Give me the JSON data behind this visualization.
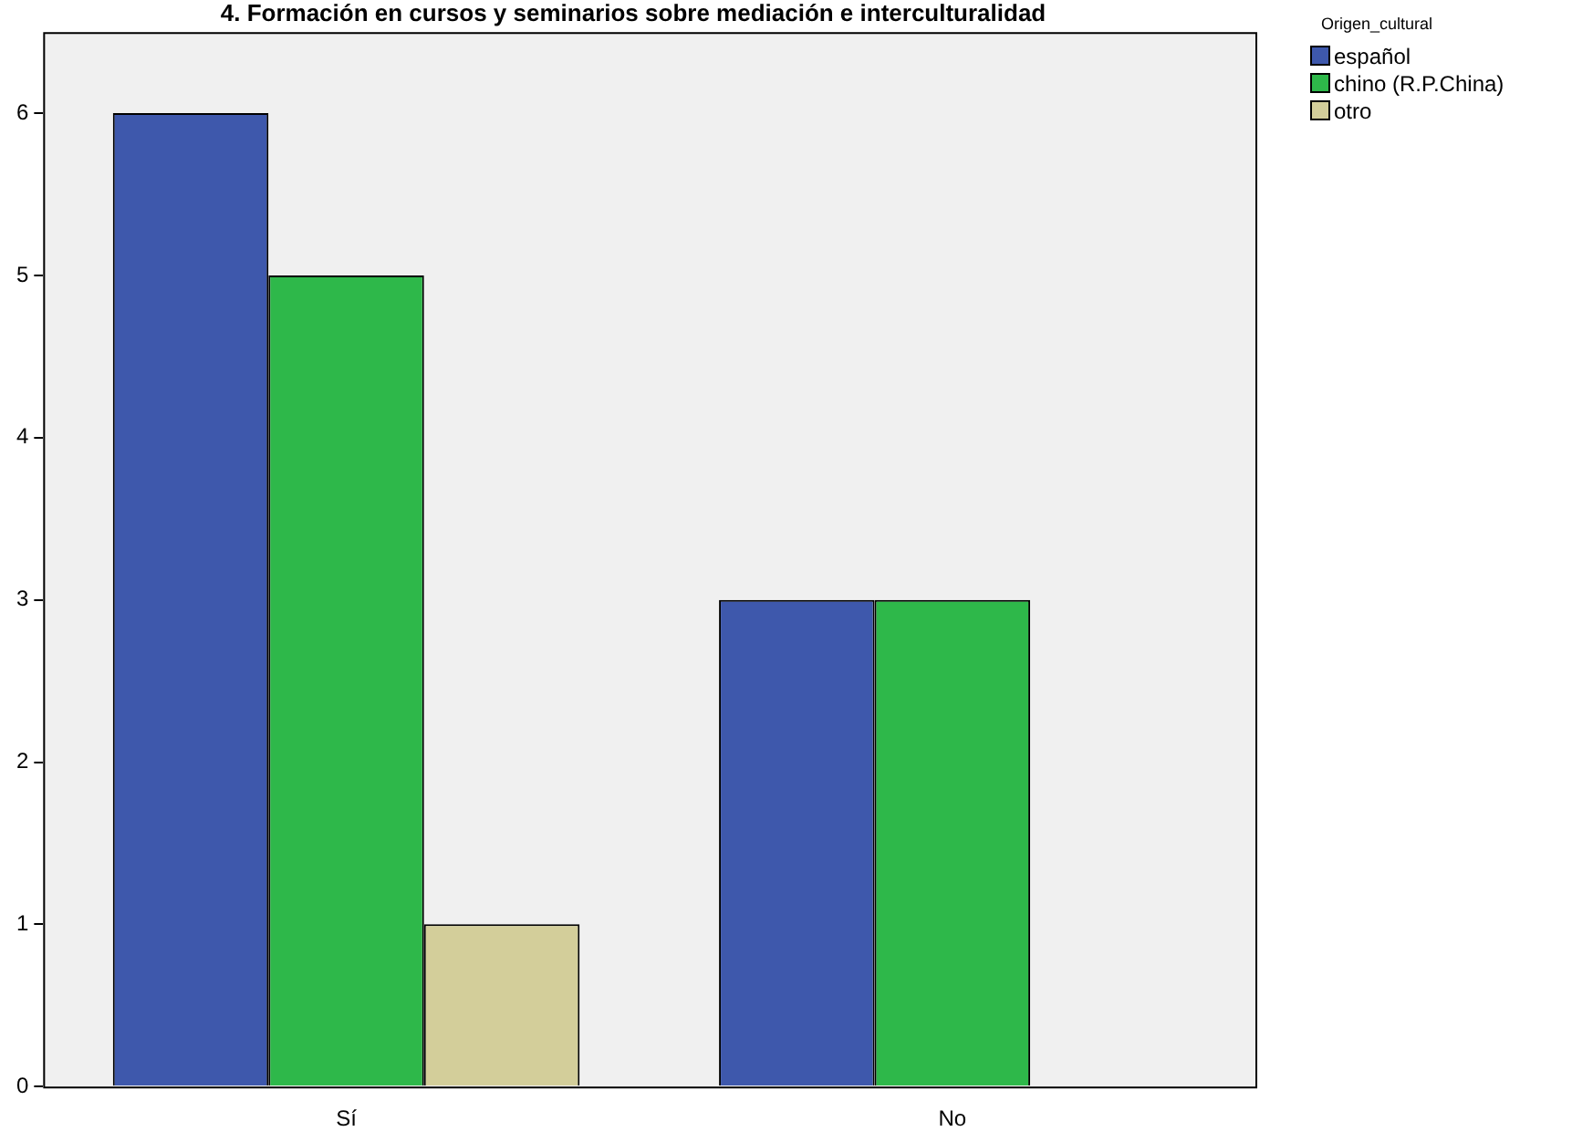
{
  "chart_data": {
    "type": "bar",
    "title": "4. Formación en cursos y seminarios sobre mediación e interculturalidad",
    "legend_title": "Origen_cultural",
    "categories": [
      "Sí",
      "No"
    ],
    "series": [
      {
        "name": "español",
        "color": "#3e58ac",
        "values": [
          6,
          3
        ]
      },
      {
        "name": "chino (R.P.China)",
        "color": "#2eb84a",
        "values": [
          5,
          3
        ]
      },
      {
        "name": "otro",
        "color": "#d3ce9a",
        "values": [
          1,
          null
        ]
      }
    ],
    "ylim": [
      0,
      6.5
    ],
    "yticks": [
      0,
      1,
      2,
      3,
      4,
      5,
      6
    ],
    "grid": false,
    "legend": "top right"
  }
}
